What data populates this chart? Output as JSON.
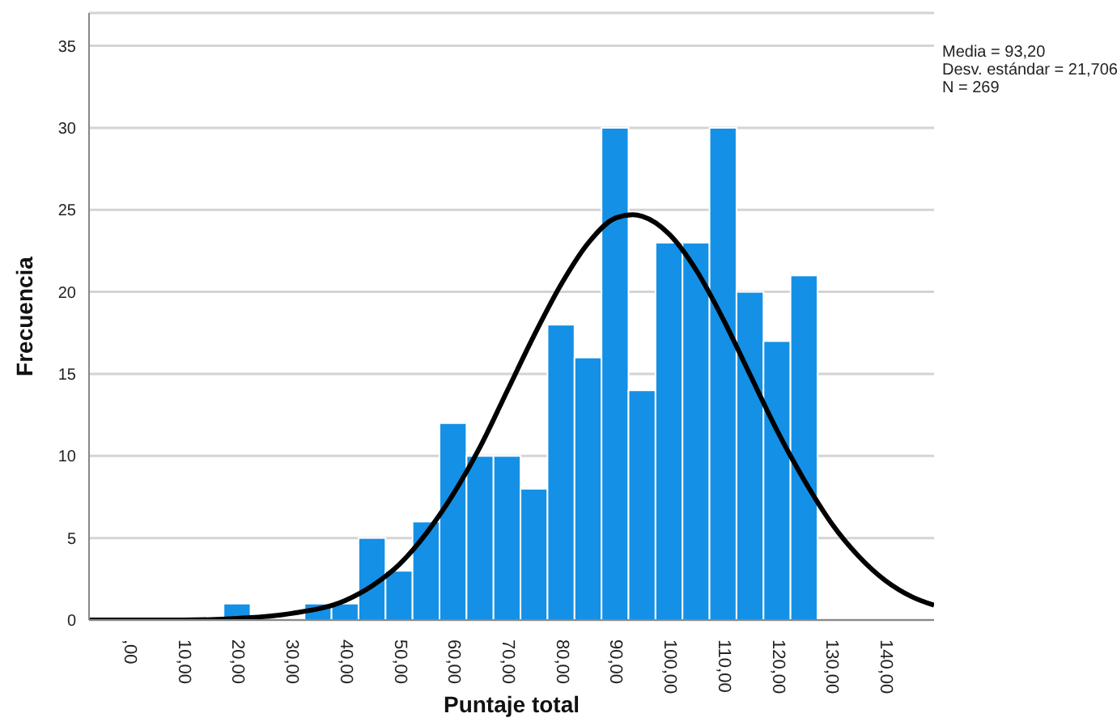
{
  "chart_data": {
    "type": "histogram",
    "xlabel": "Puntaje total",
    "ylabel": "Frecuencia",
    "bins": [
      17.5,
      22.5,
      27.5,
      32.5,
      37.5,
      42.5,
      47.5,
      52.5,
      57.5,
      62.5,
      67.5,
      72.5,
      77.5,
      82.5,
      87.5,
      92.5,
      97.5,
      102.5,
      107.5,
      112.5,
      117.5,
      122.5,
      127.5
    ],
    "values": [
      1,
      0,
      0,
      1,
      1,
      5,
      3,
      6,
      12,
      10,
      10,
      8,
      18,
      16,
      30,
      14,
      23,
      23,
      30,
      20,
      17,
      21
    ],
    "color": "#1490e6",
    "series": [
      {
        "type": "line",
        "color": "#000000",
        "x": [
          -7.5,
          0,
          10,
          20,
          30,
          40,
          45,
          50,
          55,
          60,
          65,
          70,
          75,
          80,
          85,
          90,
          93.2,
          95,
          100,
          105,
          110,
          115,
          120,
          125,
          130,
          135,
          140,
          145,
          149
        ],
        "values": [
          0,
          0,
          0,
          0.1,
          0.4,
          1.2,
          2.1,
          3.4,
          5.3,
          7.7,
          10.6,
          14,
          17.4,
          20.5,
          23,
          24.5,
          24.7,
          24.6,
          23.5,
          21.3,
          18.3,
          14.9,
          11.5,
          8.5,
          5.9,
          3.9,
          2.4,
          1.4,
          0.9
        ]
      }
    ],
    "xlim": [
      -7.5,
      149
    ],
    "xticks": [
      {
        "value": 0,
        "label": ",00"
      },
      {
        "value": 10,
        "label": "10,00"
      },
      {
        "value": 20,
        "label": "20,00"
      },
      {
        "value": 30,
        "label": "30,00"
      },
      {
        "value": 40,
        "label": "40,00"
      },
      {
        "value": 50,
        "label": "50,00"
      },
      {
        "value": 60,
        "label": "60,00"
      },
      {
        "value": 70,
        "label": "70,00"
      },
      {
        "value": 80,
        "label": "80,00"
      },
      {
        "value": 90,
        "label": "90,00"
      },
      {
        "value": 100,
        "label": "100,00"
      },
      {
        "value": 110,
        "label": "110,00"
      },
      {
        "value": 120,
        "label": "120,00"
      },
      {
        "value": 130,
        "label": "130,00"
      },
      {
        "value": 140,
        "label": "140,00"
      }
    ],
    "ylim": [
      0,
      37
    ],
    "yticks": [
      0,
      5,
      10,
      15,
      20,
      25,
      30,
      35
    ],
    "grid": "y",
    "annotations": [
      "Media = 93,20",
      "Desv. estándar = 21,706",
      "N = 269"
    ]
  }
}
